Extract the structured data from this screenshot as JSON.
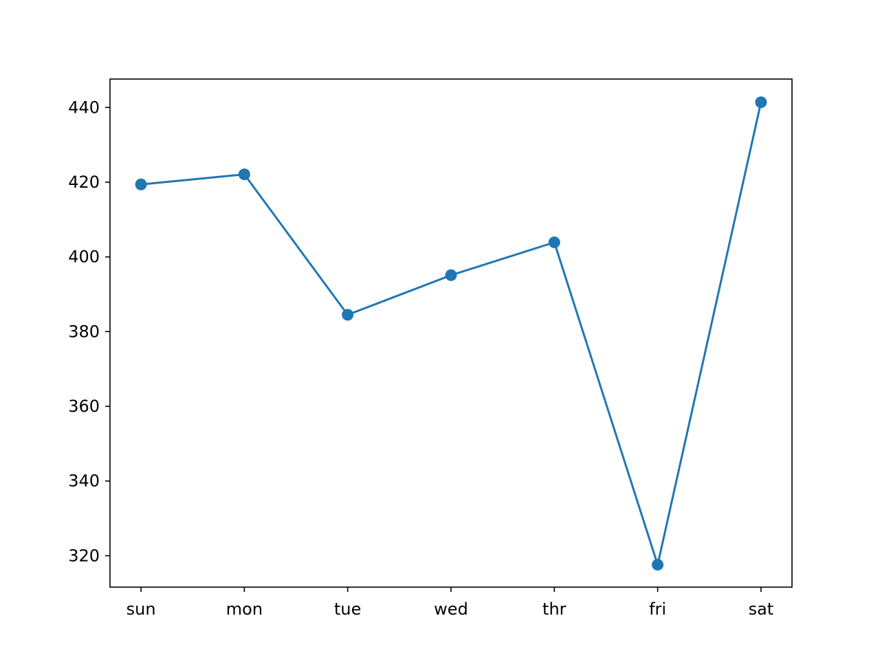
{
  "chart_data": {
    "type": "line",
    "title": "",
    "xlabel": "",
    "ylabel": "",
    "categories": [
      "sun",
      "mon",
      "tue",
      "wed",
      "thr",
      "fri",
      "sat"
    ],
    "series": [
      {
        "values": [
          419.4,
          422.1,
          384.5,
          395.1,
          403.9,
          317.6,
          441.4
        ]
      }
    ],
    "ylim": [
      311.6,
      447.6
    ],
    "yticks": [
      320,
      340,
      360,
      380,
      400,
      420,
      440
    ],
    "ytick_labels": [
      "320",
      "340",
      "360",
      "380",
      "400",
      "420",
      "440"
    ],
    "marker": "circle",
    "grid": false,
    "legend": "none",
    "colors": {
      "line": "#1f77b4",
      "axes": "#000000",
      "background": "#ffffff"
    }
  }
}
